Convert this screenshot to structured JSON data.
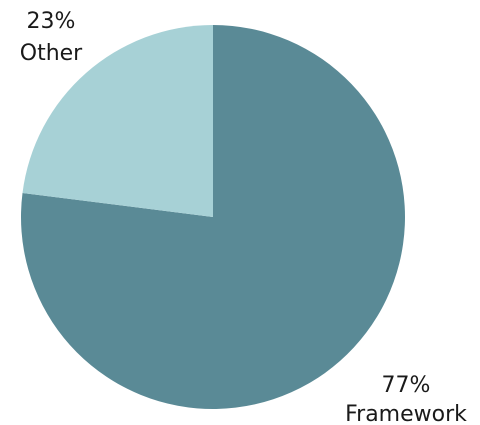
{
  "chart_data": {
    "type": "pie",
    "slices": [
      {
        "label": "Framework",
        "value": 77,
        "value_label": "77%",
        "color": "#5a8a96"
      },
      {
        "label": "Other",
        "value": 23,
        "value_label": "23%",
        "color": "#a7d1d6"
      }
    ],
    "start": "top",
    "direction": "clockwise",
    "legend": "none"
  }
}
